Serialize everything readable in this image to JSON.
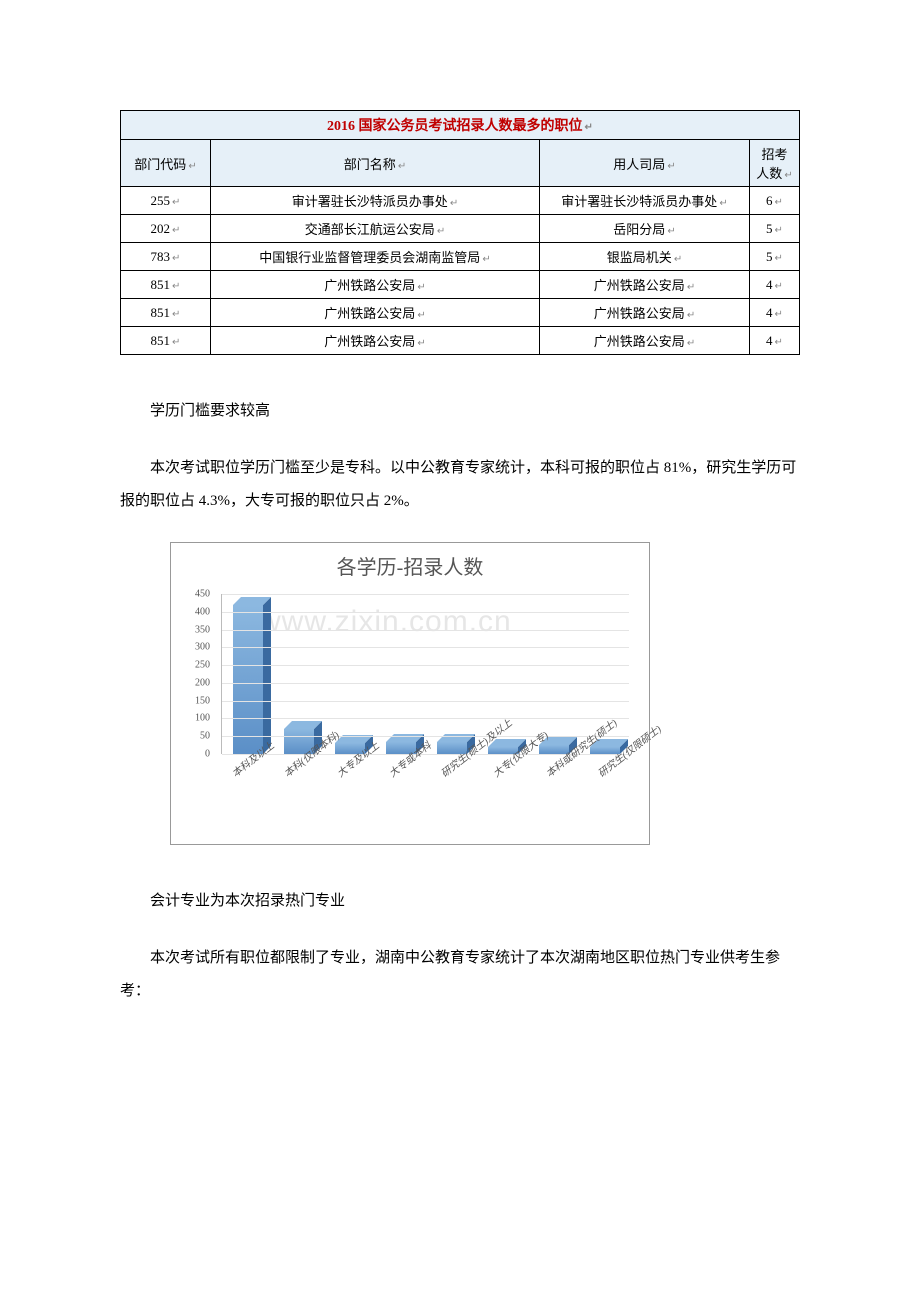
{
  "table": {
    "title": "2016 国家公务员考试招录人数最多的职位",
    "headers": [
      "部门代码",
      "部门名称",
      "用人司局",
      "招考人数"
    ],
    "rows": [
      [
        "255",
        "审计署驻长沙特派员办事处",
        "审计署驻长沙特派员办事处",
        "6"
      ],
      [
        "202",
        "交通部长江航运公安局",
        "岳阳分局",
        "5"
      ],
      [
        "783",
        "中国银行业监督管理委员会湖南监管局",
        "银监局机关",
        "5"
      ],
      [
        "851",
        "广州铁路公安局",
        "广州铁路公安局",
        "4"
      ],
      [
        "851",
        "广州铁路公安局",
        "广州铁路公安局",
        "4"
      ],
      [
        "851",
        "广州铁路公安局",
        "广州铁路公安局",
        "4"
      ]
    ]
  },
  "para1": "学历门槛要求较高",
  "para2": "本次考试职位学历门槛至少是专科。以中公教育专家统计，本科可报的职位占 81%，研究生学历可报的职位占 4.3%，大专可报的职位只占 2%。",
  "chart": {
    "title": "各学历-招录人数",
    "ymax": 450,
    "ystep": 50,
    "bar_color_front": "#5b8fc7",
    "bar_color_top": "#8cb8e0",
    "bar_color_side": "#3a6aa0",
    "grid_color": "#e4e4e4",
    "categories": [
      "本科及以上",
      "本科(仅限本科)",
      "大专及以上",
      "大专或本科",
      "研究生(硕士)及以上",
      "大专(仅限大专)",
      "本科或研究生(硕士)",
      "研究生(仅限硕士)"
    ],
    "values": [
      420,
      70,
      30,
      35,
      35,
      20,
      25,
      20
    ]
  },
  "para3": "会计专业为本次招录热门专业",
  "para4": "本次考试所有职位都限制了专业，湖南中公教育专家统计了本次湖南地区职位热门专业供考生参考：",
  "watermark": "www.zixin.com.cn"
}
